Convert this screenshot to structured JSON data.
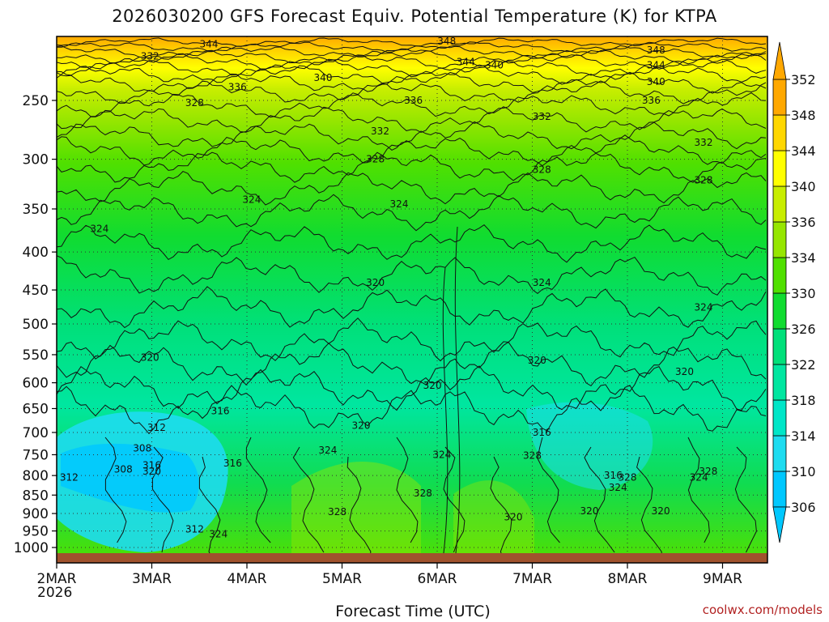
{
  "chart_data": {
    "type": "contour",
    "title": "2026030200 GFS Forecast Equiv. Potential Temperature (K) for KTPA",
    "xlabel": "Forecast Time (UTC)",
    "ylabel": "",
    "x_ticks": [
      "2MAR",
      "3MAR",
      "4MAR",
      "5MAR",
      "6MAR",
      "7MAR",
      "8MAR",
      "9MAR"
    ],
    "x_year": "2026",
    "y_ticks": [
      250,
      300,
      350,
      400,
      450,
      500,
      550,
      600,
      650,
      700,
      750,
      800,
      850,
      900,
      950,
      1000
    ],
    "y_scale": "log-pressure, inverted",
    "ylim": [
      1025,
      200
    ],
    "xlim_days": [
      0,
      7.5
    ],
    "colorbar_levels": [
      306,
      310,
      314,
      318,
      322,
      326,
      330,
      334,
      336,
      340,
      344,
      348,
      352
    ],
    "colorbar_colors": [
      "#00c8ff",
      "#1edcf0",
      "#00e6c8",
      "#00e6a0",
      "#00e07a",
      "#10dc30",
      "#50e000",
      "#96e600",
      "#c8ee00",
      "#ffff00",
      "#ffd700",
      "#ffa800"
    ],
    "contour_labels": [
      {
        "day": 1.6,
        "p": 210,
        "v": "344"
      },
      {
        "day": 4.1,
        "p": 208,
        "v": "348"
      },
      {
        "day": 6.3,
        "p": 214,
        "v": "348"
      },
      {
        "day": 4.3,
        "p": 222,
        "v": "344"
      },
      {
        "day": 4.6,
        "p": 224,
        "v": "340"
      },
      {
        "day": 6.3,
        "p": 224,
        "v": "344"
      },
      {
        "day": 0.98,
        "p": 218,
        "v": "332"
      },
      {
        "day": 2.8,
        "p": 233,
        "v": "340"
      },
      {
        "day": 6.3,
        "p": 236,
        "v": "340"
      },
      {
        "day": 1.9,
        "p": 240,
        "v": "336"
      },
      {
        "day": 3.75,
        "p": 250,
        "v": "336"
      },
      {
        "day": 6.25,
        "p": 250,
        "v": "336"
      },
      {
        "day": 1.45,
        "p": 252,
        "v": "328"
      },
      {
        "day": 5.1,
        "p": 263,
        "v": "332"
      },
      {
        "day": 3.4,
        "p": 275,
        "v": "332"
      },
      {
        "day": 6.8,
        "p": 285,
        "v": "332"
      },
      {
        "day": 3.35,
        "p": 300,
        "v": "328"
      },
      {
        "day": 5.1,
        "p": 310,
        "v": "328"
      },
      {
        "day": 6.8,
        "p": 320,
        "v": "328"
      },
      {
        "day": 2.05,
        "p": 340,
        "v": "324"
      },
      {
        "day": 3.6,
        "p": 345,
        "v": "324"
      },
      {
        "day": 0.45,
        "p": 372,
        "v": "324"
      },
      {
        "day": 3.35,
        "p": 440,
        "v": "320"
      },
      {
        "day": 5.1,
        "p": 440,
        "v": "324"
      },
      {
        "day": 6.8,
        "p": 475,
        "v": "324"
      },
      {
        "day": 0.98,
        "p": 555,
        "v": "320"
      },
      {
        "day": 5.05,
        "p": 560,
        "v": "320"
      },
      {
        "day": 6.6,
        "p": 580,
        "v": "320"
      },
      {
        "day": 3.95,
        "p": 605,
        "v": "320"
      },
      {
        "day": 1.72,
        "p": 655,
        "v": "316"
      },
      {
        "day": 3.2,
        "p": 685,
        "v": "320"
      },
      {
        "day": 1.05,
        "p": 690,
        "v": "312"
      },
      {
        "day": 5.1,
        "p": 700,
        "v": "316"
      },
      {
        "day": 0.9,
        "p": 735,
        "v": "308"
      },
      {
        "day": 2.85,
        "p": 740,
        "v": "324"
      },
      {
        "day": 4.05,
        "p": 750,
        "v": "324"
      },
      {
        "day": 5.0,
        "p": 752,
        "v": "328"
      },
      {
        "day": 1.0,
        "p": 775,
        "v": "316"
      },
      {
        "day": 1.85,
        "p": 770,
        "v": "316"
      },
      {
        "day": 0.7,
        "p": 785,
        "v": "308"
      },
      {
        "day": 1.0,
        "p": 790,
        "v": "320"
      },
      {
        "day": 6.85,
        "p": 790,
        "v": "328"
      },
      {
        "day": 0.13,
        "p": 805,
        "v": "312"
      },
      {
        "day": 5.85,
        "p": 800,
        "v": "316"
      },
      {
        "day": 6.0,
        "p": 805,
        "v": "328"
      },
      {
        "day": 6.75,
        "p": 805,
        "v": "324"
      },
      {
        "day": 5.9,
        "p": 830,
        "v": "324"
      },
      {
        "day": 3.85,
        "p": 845,
        "v": "328"
      },
      {
        "day": 2.95,
        "p": 895,
        "v": "328"
      },
      {
        "day": 5.6,
        "p": 893,
        "v": "320"
      },
      {
        "day": 6.35,
        "p": 893,
        "v": "320"
      },
      {
        "day": 4.8,
        "p": 910,
        "v": "320"
      },
      {
        "day": 1.45,
        "p": 945,
        "v": "312"
      },
      {
        "day": 1.7,
        "p": 960,
        "v": "324"
      }
    ]
  },
  "credit": "coolwx.com/models"
}
